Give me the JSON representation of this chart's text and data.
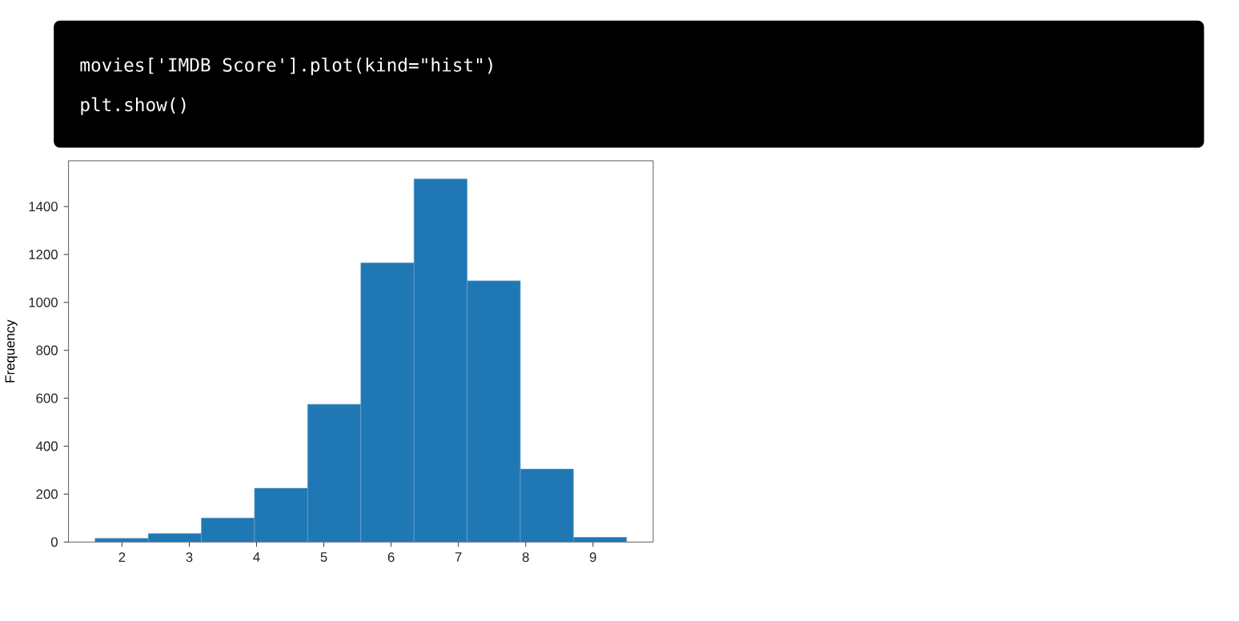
{
  "chart_data": {
    "type": "histogram",
    "annotations": [
      "movies['IMDB Score'].plot(kind=\"hist\")",
      "plt.show()"
    ],
    "ylabel": "Frequency",
    "bins": [
      1.6,
      2.39,
      3.18,
      3.97,
      4.76,
      5.55,
      6.34,
      7.13,
      7.92,
      8.71,
      9.5
    ],
    "values": [
      15,
      35,
      100,
      225,
      575,
      1165,
      1515,
      1090,
      305,
      20
    ],
    "color": "#1f77b4",
    "xlim": [
      1.205,
      9.895
    ],
    "xticks": [
      2,
      3,
      4,
      5,
      6,
      7,
      8,
      9
    ],
    "ylim": [
      0,
      1591
    ],
    "yticks": [
      0,
      200,
      400,
      600,
      800,
      1000,
      1200,
      1400
    ],
    "grid": false
  }
}
